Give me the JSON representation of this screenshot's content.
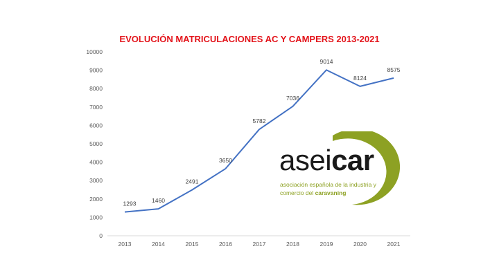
{
  "chart_data": {
    "type": "line",
    "title": "EVOLUCIÓN MATRICULACIONES AC Y CAMPERS 2013-2021",
    "categories": [
      "2013",
      "2014",
      "2015",
      "2016",
      "2017",
      "2018",
      "2019",
      "2020",
      "2021"
    ],
    "series": [
      {
        "values": [
          1293,
          1460,
          2491,
          3650,
          5782,
          7036,
          9014,
          8124,
          8575
        ],
        "color": "#4472c4"
      }
    ],
    "ylim": [
      0,
      10000
    ],
    "yticks": [
      "0",
      "1000",
      "2000",
      "3000",
      "4000",
      "5000",
      "6000",
      "7000",
      "8000",
      "9000",
      "10000"
    ],
    "grid": false,
    "data_labels": true
  },
  "logo": {
    "word_part1": "asei",
    "word_part2": "car",
    "line1": "asociación española de la industria y",
    "line2_prefix": "comercio del ",
    "line2_bold": "caravaning",
    "arc_color": "#8da123"
  }
}
